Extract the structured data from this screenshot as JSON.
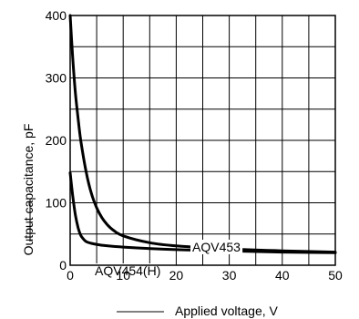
{
  "chart_data": {
    "type": "line",
    "title": "",
    "xlabel": "Applied voltage, V",
    "ylabel": "Output capacitance, pF",
    "xlim": [
      0,
      50
    ],
    "ylim": [
      0,
      400
    ],
    "x_ticks": [
      "0",
      "10",
      "20",
      "30",
      "40",
      "50"
    ],
    "y_ticks": [
      "0",
      "100",
      "200",
      "300",
      "400"
    ],
    "grid": {
      "x_step": 5,
      "y_step": 50
    },
    "series": [
      {
        "name": "AQV453",
        "points": [
          [
            0,
            400
          ],
          [
            0.5,
            330
          ],
          [
            1,
            275
          ],
          [
            1.5,
            235
          ],
          [
            2,
            200
          ],
          [
            3,
            150
          ],
          [
            4,
            115
          ],
          [
            5,
            92
          ],
          [
            6,
            76
          ],
          [
            7,
            65
          ],
          [
            8,
            57
          ],
          [
            10,
            47
          ],
          [
            15,
            36
          ],
          [
            20,
            31
          ],
          [
            30,
            26
          ],
          [
            40,
            23
          ],
          [
            50,
            21
          ]
        ]
      },
      {
        "name": "AQV454(H)",
        "points": [
          [
            0,
            148
          ],
          [
            0.5,
            110
          ],
          [
            1,
            80
          ],
          [
            1.5,
            60
          ],
          [
            2,
            48
          ],
          [
            2.5,
            42
          ],
          [
            3,
            38
          ],
          [
            4,
            35
          ],
          [
            6,
            32
          ],
          [
            10,
            29
          ],
          [
            20,
            25
          ],
          [
            30,
            23
          ],
          [
            40,
            21
          ],
          [
            50,
            20
          ]
        ]
      }
    ],
    "series_labels": [
      "AQV453",
      "AQV454(H)"
    ]
  }
}
